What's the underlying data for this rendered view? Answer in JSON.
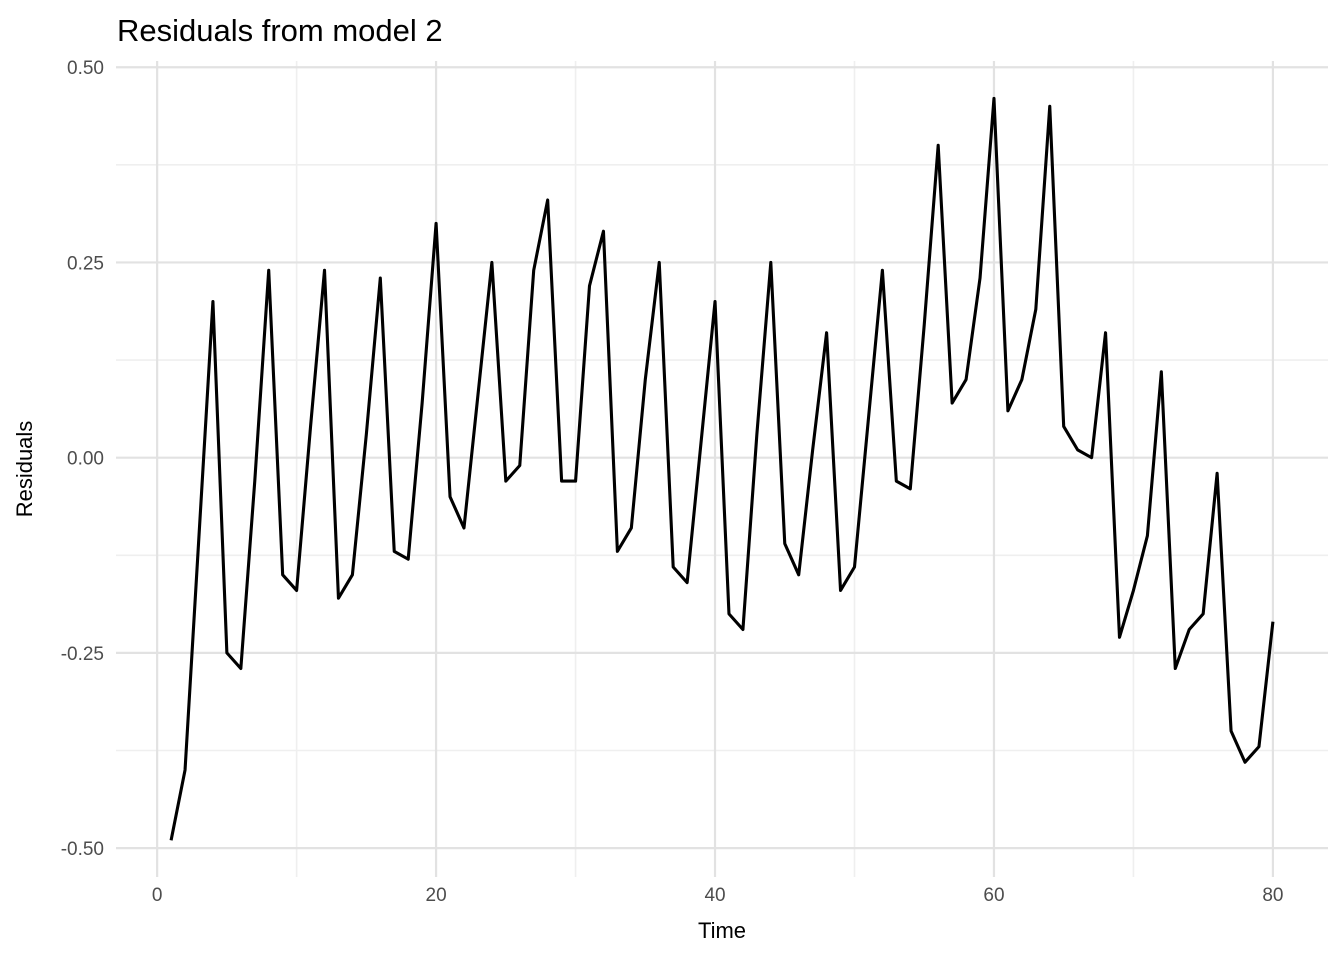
{
  "chart_data": {
    "type": "line",
    "title": "Residuals from model 2",
    "xlabel": "Time",
    "ylabel": "Residuals",
    "grid": true,
    "legend": false,
    "x_first": 1,
    "x_step": 1,
    "values": [
      -0.49,
      -0.4,
      -0.1,
      0.2,
      -0.25,
      -0.27,
      -0.03,
      0.24,
      -0.15,
      -0.17,
      0.04,
      0.24,
      -0.18,
      -0.15,
      0.03,
      0.23,
      -0.12,
      -0.13,
      0.07,
      0.3,
      -0.05,
      -0.09,
      0.08,
      0.25,
      -0.03,
      -0.01,
      0.24,
      0.33,
      -0.03,
      -0.03,
      0.22,
      0.29,
      -0.12,
      -0.09,
      0.1,
      0.25,
      -0.14,
      -0.16,
      0.02,
      0.2,
      -0.2,
      -0.22,
      0.03,
      0.25,
      -0.11,
      -0.15,
      0.01,
      0.16,
      -0.17,
      -0.14,
      0.05,
      0.24,
      -0.03,
      -0.04,
      0.17,
      0.4,
      0.07,
      0.1,
      0.23,
      0.46,
      0.06,
      0.1,
      0.19,
      0.45,
      0.04,
      0.01,
      0.0,
      0.16,
      -0.23,
      -0.17,
      -0.1,
      0.11,
      -0.27,
      -0.22,
      -0.2,
      -0.02,
      -0.35,
      -0.39,
      -0.37,
      -0.21
    ],
    "xlim": [
      -2.95,
      83.95
    ],
    "ylim": [
      -0.537,
      0.508
    ],
    "x_ticks_major": [
      0,
      20,
      40,
      60,
      80
    ],
    "x_ticks_minor": [
      10,
      30,
      50,
      70
    ],
    "x_tick_labels": [
      "0",
      "20",
      "40",
      "60",
      "80"
    ],
    "y_ticks_major": [
      0.5,
      0.25,
      0.0,
      -0.25,
      -0.5
    ],
    "y_ticks_minor": [
      0.375,
      0.125,
      -0.125,
      -0.375
    ],
    "y_tick_labels": [
      "0.50",
      "0.25",
      "0.00",
      "-0.25",
      "-0.50"
    ],
    "colors": {
      "line": "#000000",
      "grid_major": "#e2e2e2",
      "grid_minor": "#efefef",
      "tick_label": "#4d4d4d",
      "text": "#000000",
      "background": "#ffffff"
    }
  }
}
